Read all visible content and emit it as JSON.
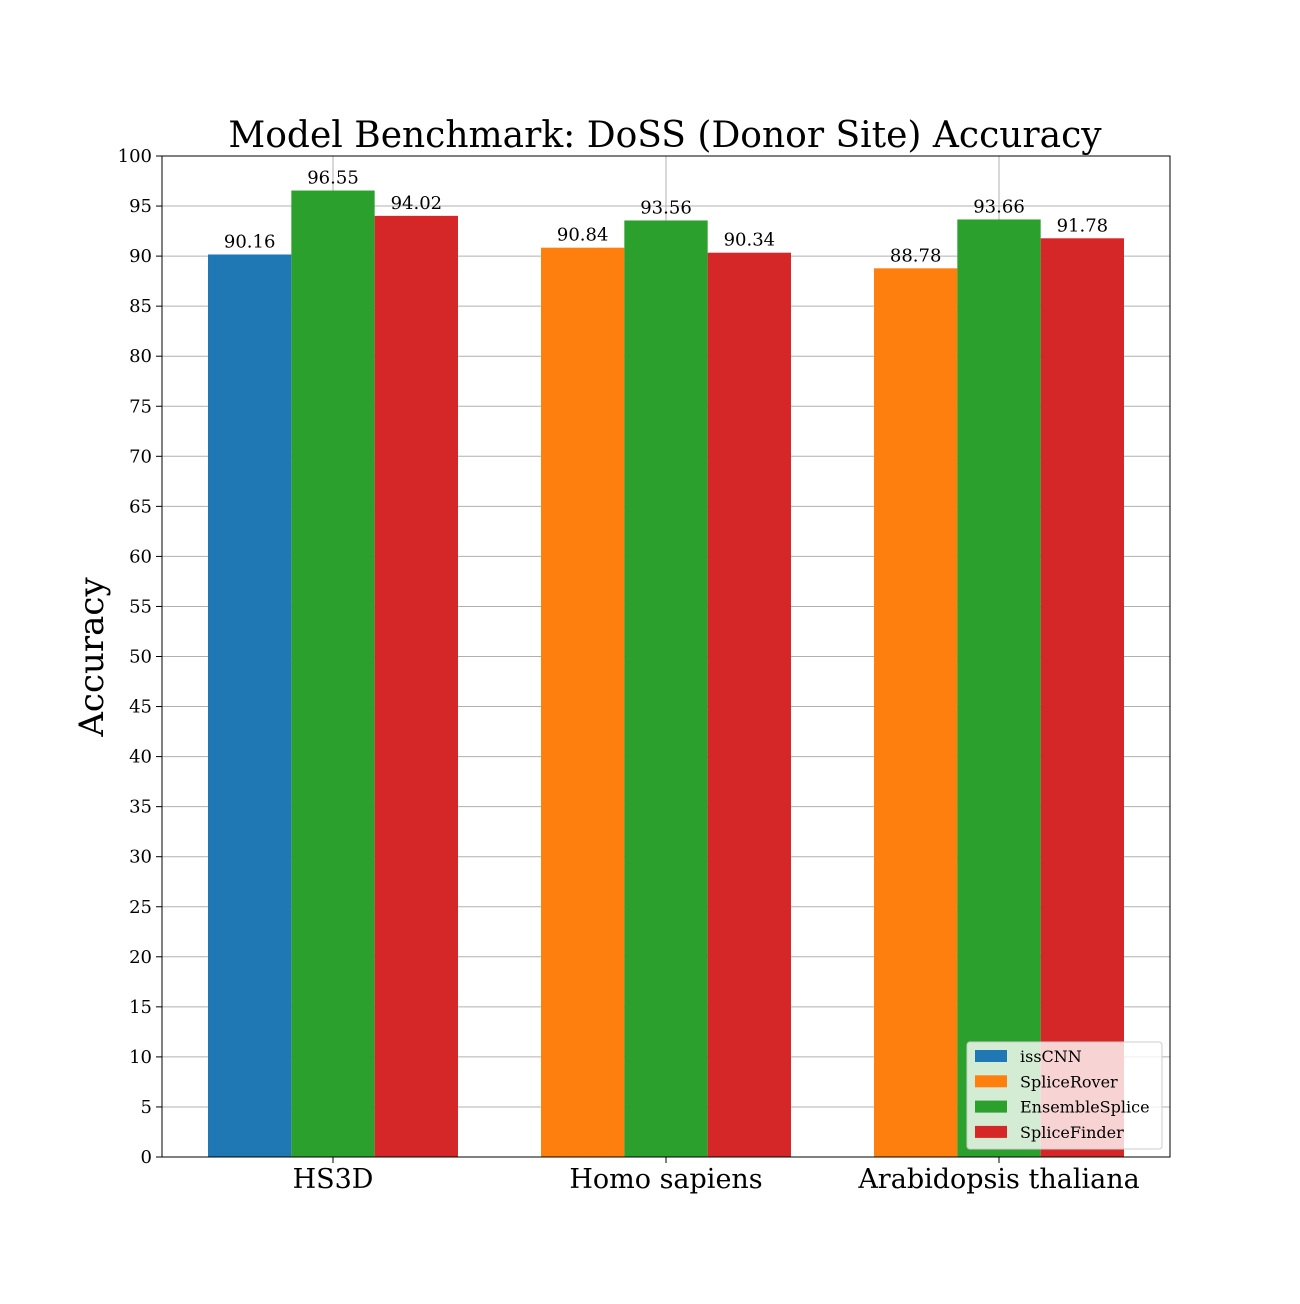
{
  "chart_data": {
    "type": "bar",
    "title": "Model Benchmark: DoSS (Donor Site) Accuracy",
    "xlabel": "",
    "ylabel": "Accuracy",
    "ylim": [
      0,
      100
    ],
    "yticks": [
      0,
      5,
      10,
      15,
      20,
      25,
      30,
      35,
      40,
      45,
      50,
      55,
      60,
      65,
      70,
      75,
      80,
      85,
      90,
      95,
      100
    ],
    "grid": true,
    "legend_position": "lower-right",
    "categories": [
      "HS3D",
      "Homo sapiens",
      "Arabidopsis thaliana"
    ],
    "bar_slots": [
      [
        "issCNN",
        "EnsembleSplice",
        "SpliceFinder"
      ],
      [
        "SpliceRover",
        "EnsembleSplice",
        "SpliceFinder"
      ],
      [
        "SpliceRover",
        "EnsembleSplice",
        "SpliceFinder"
      ]
    ],
    "series": [
      {
        "name": "issCNN",
        "color": "#1f77b4",
        "values": [
          90.16,
          null,
          null
        ]
      },
      {
        "name": "SpliceRover",
        "color": "#ff7f0e",
        "values": [
          null,
          90.84,
          88.78
        ]
      },
      {
        "name": "EnsembleSplice",
        "color": "#2ca02c",
        "values": [
          96.55,
          93.56,
          93.66
        ]
      },
      {
        "name": "SpliceFinder",
        "color": "#d62728",
        "values": [
          94.02,
          90.34,
          91.78
        ]
      }
    ]
  }
}
